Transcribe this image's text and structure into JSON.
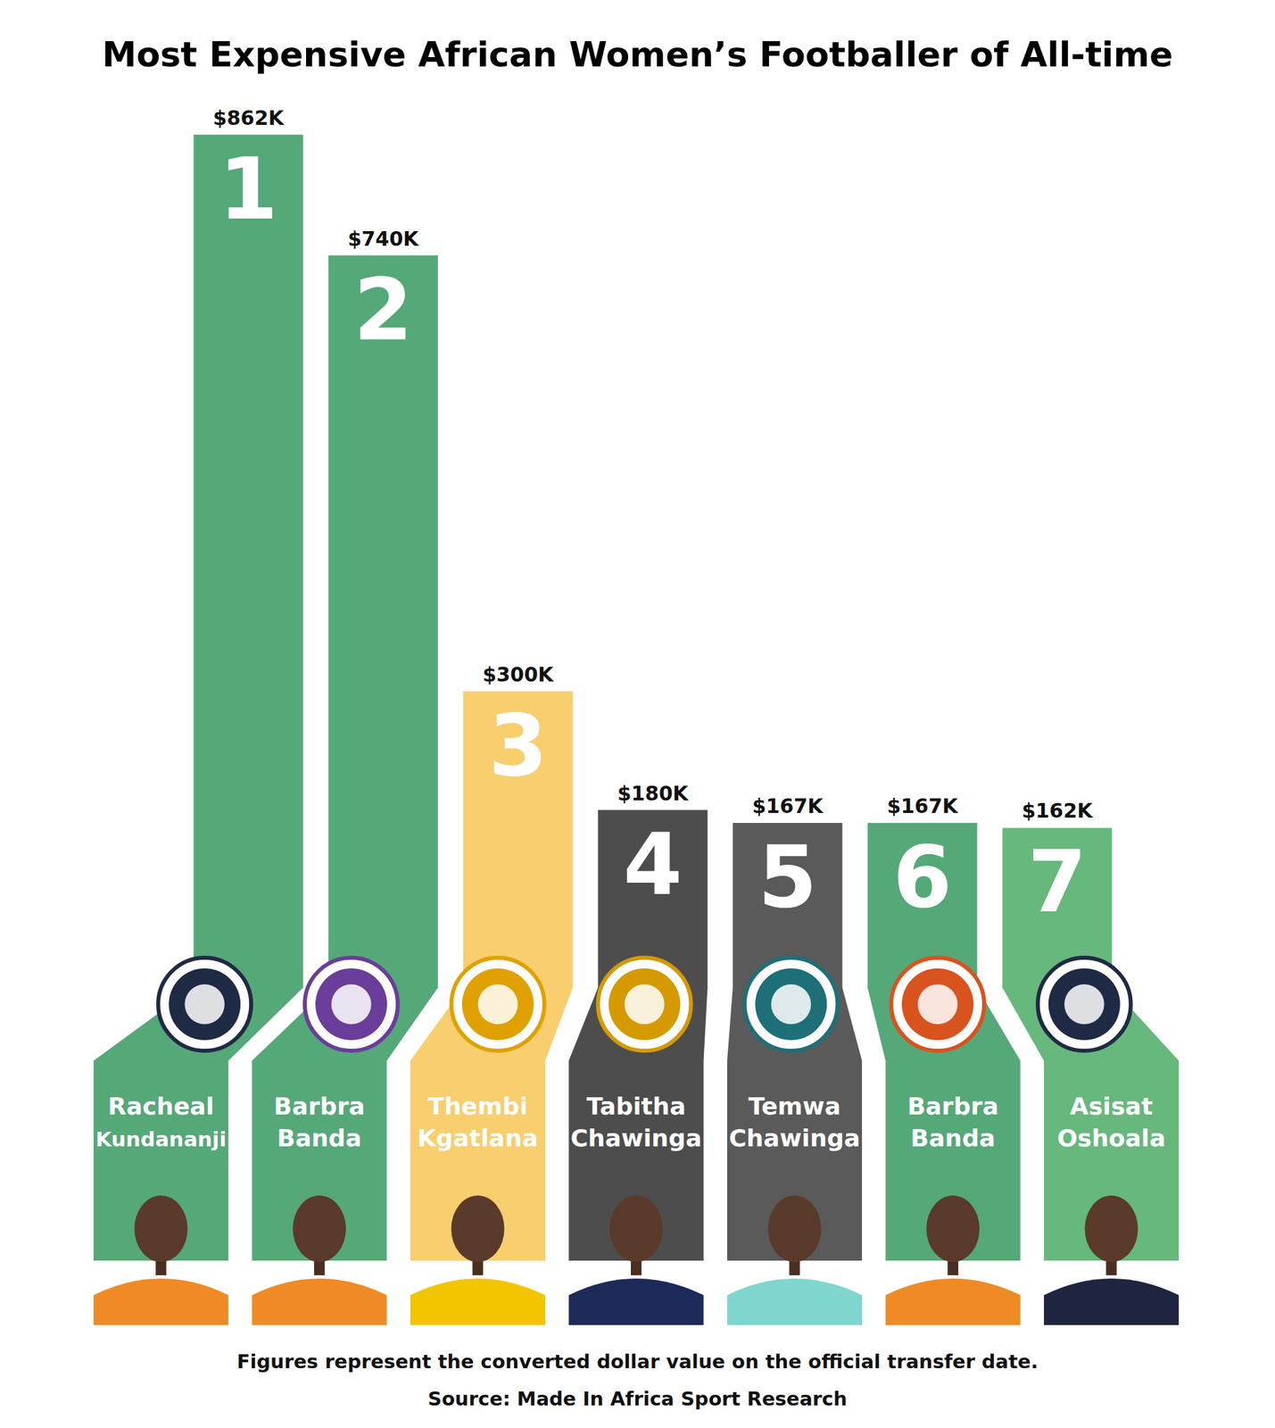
{
  "chart_data": {
    "type": "bar",
    "title": "Most Expensive African Women’s Footballer of All-time",
    "categories": [
      "Racheal Kundananji",
      "Barbra Banda",
      "Thembi Kgatlana",
      "Tabitha Chawinga",
      "Temwa Chawinga",
      "Barbra Banda",
      "Asisat Oshoala"
    ],
    "values": [
      862,
      740,
      300,
      180,
      167,
      167,
      162
    ],
    "value_labels": [
      "$862K",
      "$740K",
      "$300K",
      "$180K",
      "$167K",
      "$167K",
      "$162K"
    ],
    "ranks": [
      1,
      2,
      3,
      4,
      5,
      6,
      7
    ],
    "colors": [
      "#55a878",
      "#55a878",
      "#f8ce6e",
      "#4d4d4d",
      "#5a5a5a",
      "#55a878",
      "#66b87c"
    ],
    "ylim": [
      0,
      900
    ],
    "yticks": [],
    "grid": false,
    "tick_labels": false,
    "data_labels": true,
    "annotations": [
      "Figures represent the converted dollar value on the official transfer date.",
      "Source: Made In Africa Sport Research"
    ]
  }
}
